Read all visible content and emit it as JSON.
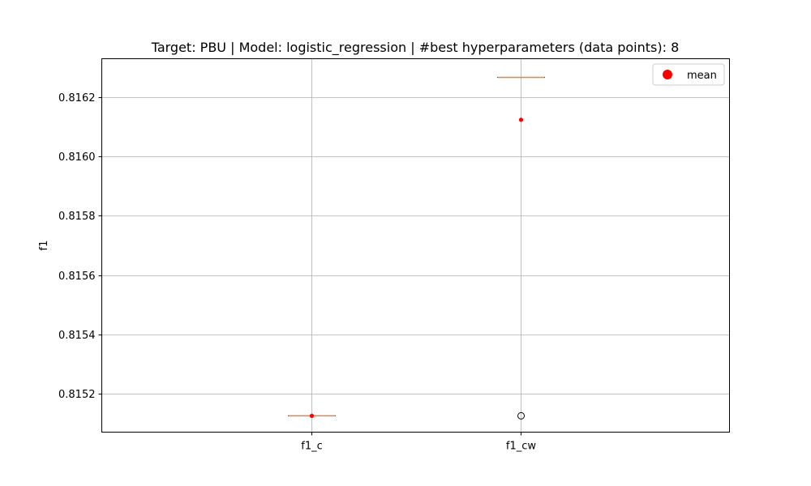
{
  "chart_data": {
    "type": "box",
    "title": "Target: PBU | Model: logistic_regression | #best hyperparameters (data points): 8",
    "xlabel": "",
    "ylabel": "f1",
    "ylim": [
      0.81507,
      0.81633
    ],
    "yticks": [
      0.8152,
      0.8154,
      0.8156,
      0.8158,
      0.816,
      0.8162
    ],
    "ytick_labels": [
      "0.8152",
      "0.8154",
      "0.8156",
      "0.8158",
      "0.8160",
      "0.8162"
    ],
    "categories": [
      "f1_c",
      "f1_cw"
    ],
    "boxes": [
      {
        "category": "f1_c",
        "q1": 0.815125,
        "median": 0.815125,
        "q3": 0.815125,
        "whisker_low": 0.815125,
        "whisker_high": 0.815125,
        "mean": 0.815125,
        "outliers": []
      },
      {
        "category": "f1_cw",
        "q1": 0.816267,
        "median": 0.816267,
        "q3": 0.816267,
        "whisker_low": 0.816267,
        "whisker_high": 0.816267,
        "mean": 0.816124,
        "outliers": [
          0.815125
        ]
      }
    ],
    "legend": {
      "position": "top-right",
      "entries": [
        "mean"
      ]
    },
    "grid": true,
    "colors": {
      "median": "#e3894b",
      "box": "#000000",
      "mean": "#ff0000",
      "grid": "#b0b0b0"
    }
  }
}
